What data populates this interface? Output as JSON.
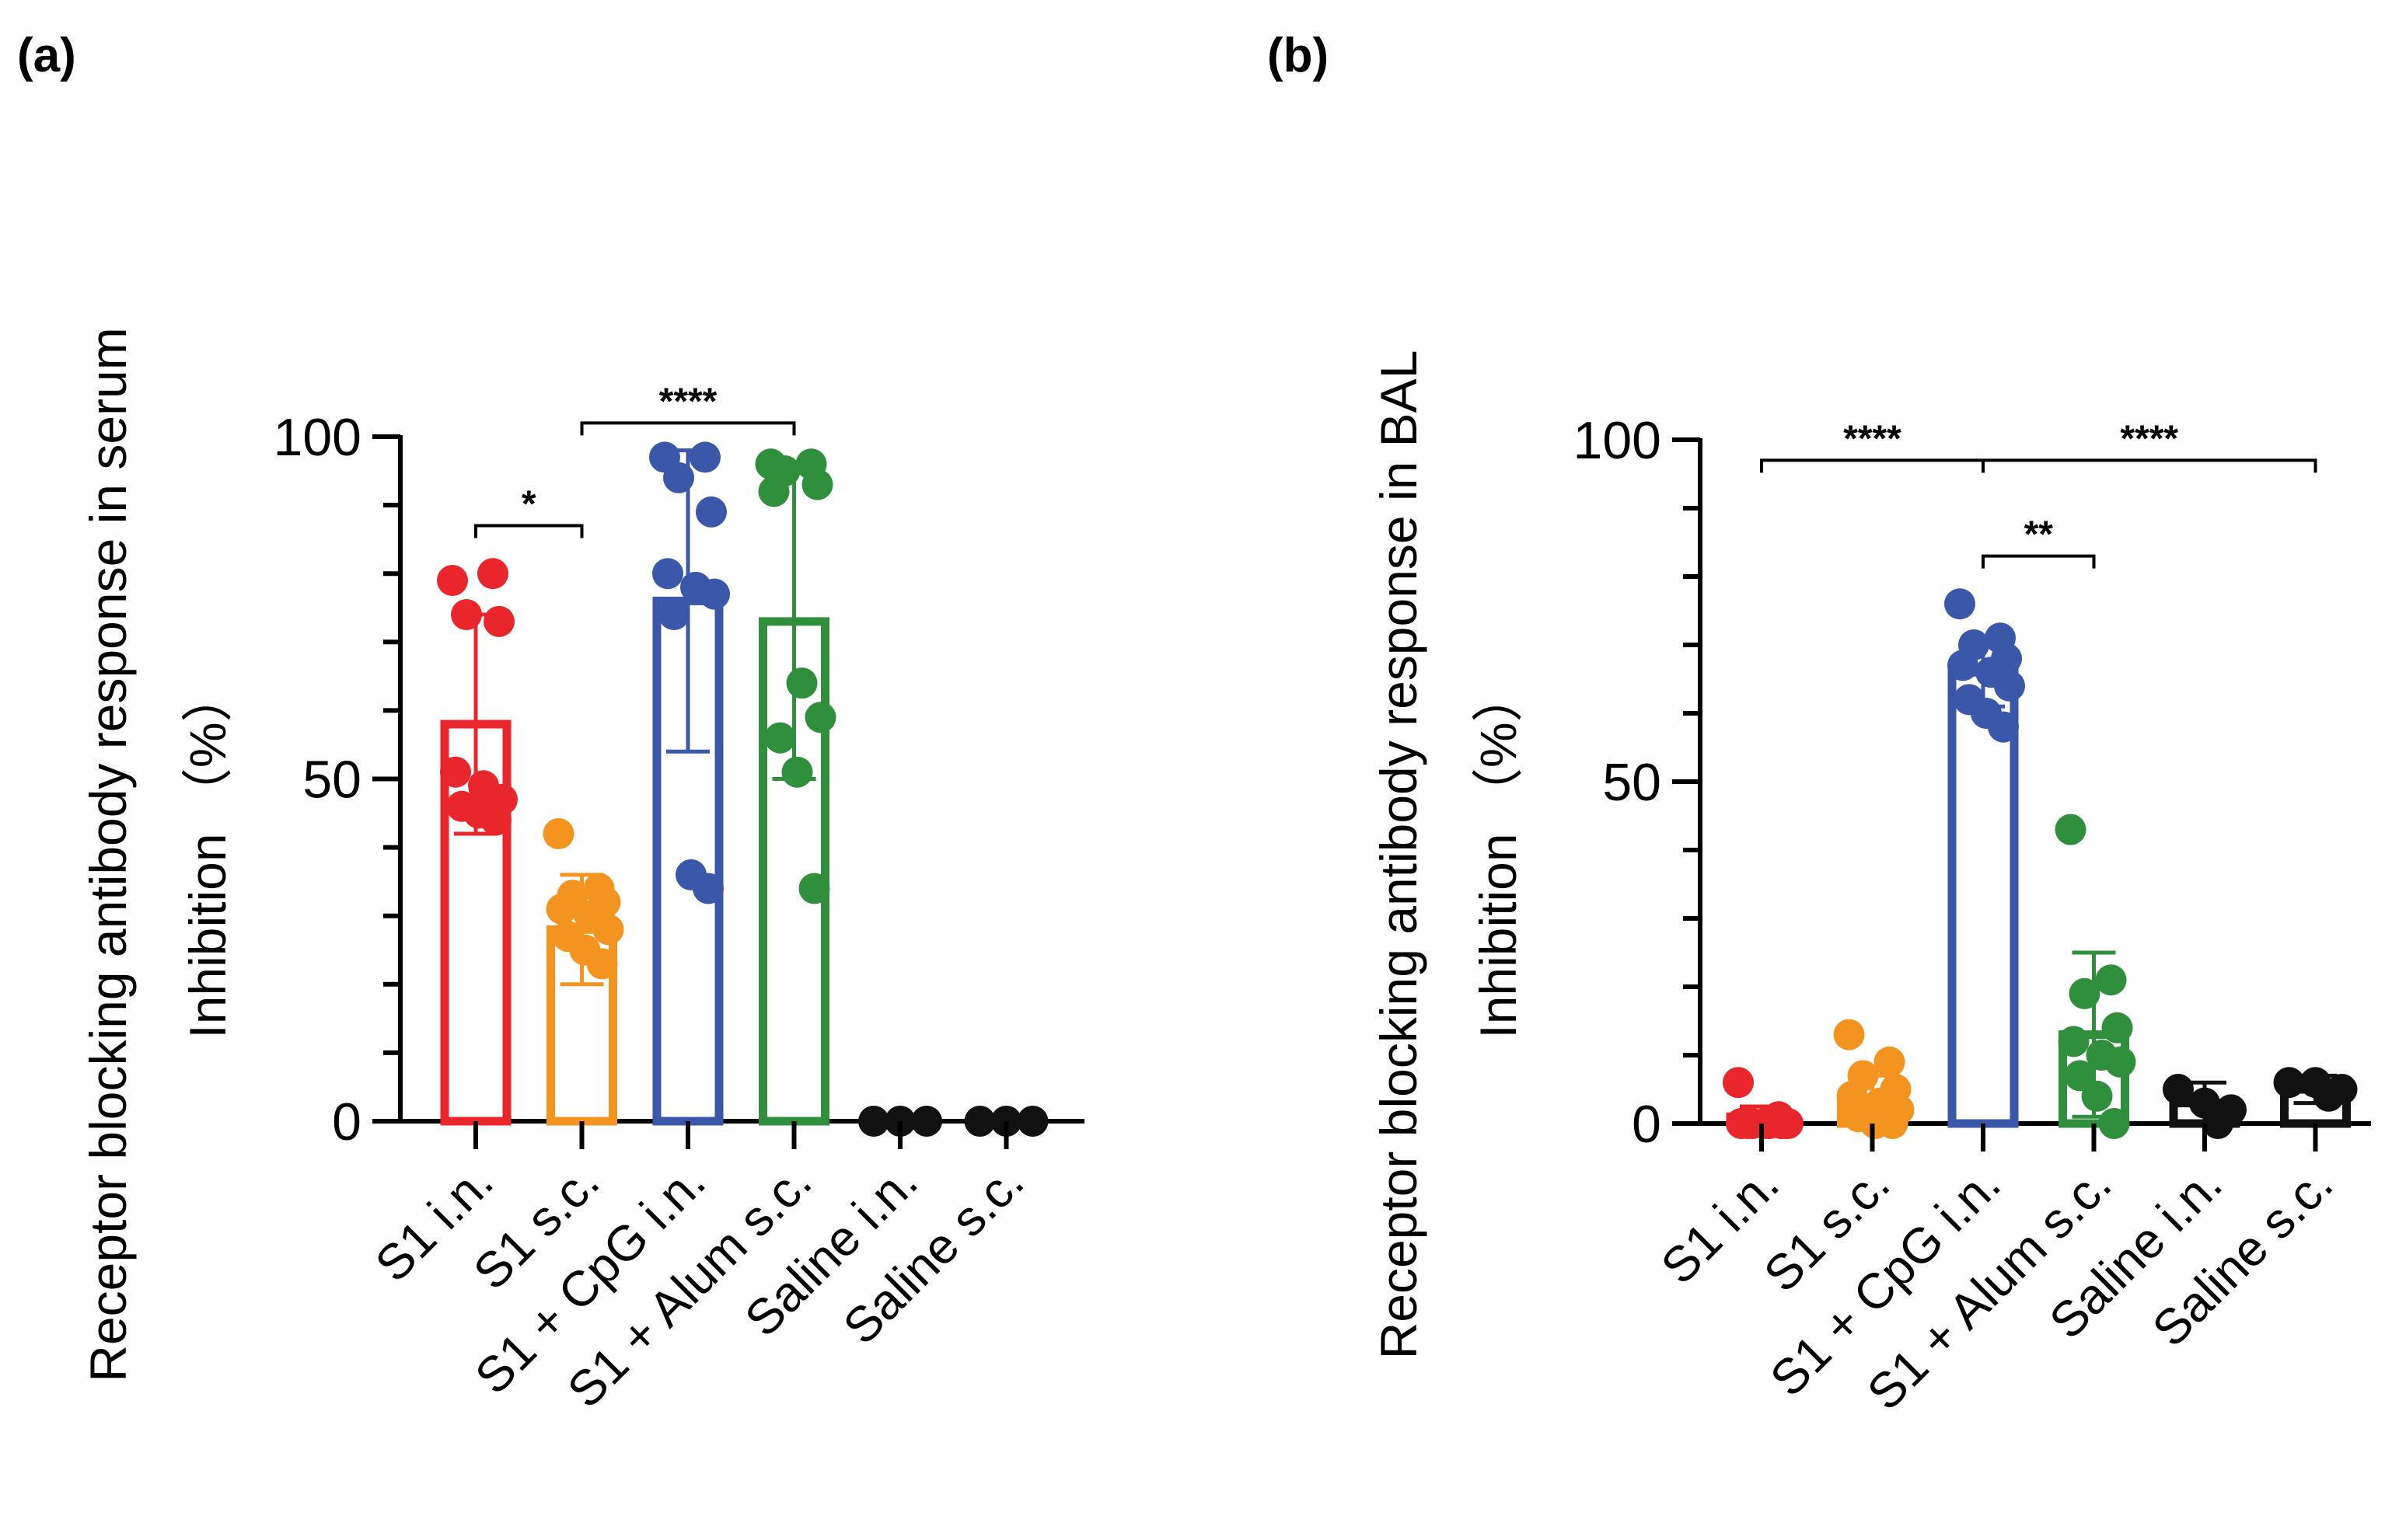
{
  "colors": {
    "red": "#e8262b",
    "orange": "#f39420",
    "blue": "#3a57aa",
    "green": "#2f8f3c",
    "black": "#111111"
  },
  "chart_data": [
    {
      "panel_label": "(a)",
      "type": "bar",
      "ylabel_line1": "Receptor blocking antibody response in serum",
      "ylabel_line2": "Inhibition （%）",
      "ylim": [
        0,
        100
      ],
      "yticks": [
        "0",
        "50",
        "100"
      ],
      "categories": [
        "S1 i.n.",
        "S1 s.c.",
        "S1 + CpG i.n.",
        "S1 + Alum s.c.",
        "Saline i.n.",
        "Saline s.c."
      ],
      "bar_colors": [
        "red",
        "orange",
        "blue",
        "green",
        "black",
        "black"
      ],
      "values": [
        58,
        28,
        76,
        73,
        0,
        0
      ],
      "sd": [
        16,
        8,
        22,
        23,
        0,
        0
      ],
      "points": [
        [
          79,
          80,
          74,
          73,
          51,
          49,
          47,
          46,
          45,
          44
        ],
        [
          42,
          34,
          33,
          32,
          31,
          30,
          28,
          27,
          25,
          23
        ],
        [
          97,
          97,
          94,
          89,
          80,
          78,
          77,
          74,
          36,
          34
        ],
        [
          96,
          96,
          95,
          93,
          92,
          64,
          59,
          56,
          51,
          34
        ],
        [
          0,
          0,
          0
        ],
        [
          0,
          0,
          0
        ]
      ],
      "significance": [
        {
          "from": 0,
          "to": 1,
          "y": 87,
          "label": "*"
        },
        {
          "from": 1,
          "to": 3,
          "y": 102,
          "label": "****"
        }
      ]
    },
    {
      "panel_label": "(b)",
      "type": "bar",
      "ylabel_line1": "Receptor blocking antibody response in BAL",
      "ylabel_line2": "Inhibition （%）",
      "ylim": [
        0,
        100
      ],
      "yticks": [
        "0",
        "50",
        "100"
      ],
      "categories": [
        "S1 i.n.",
        "S1 s.c.",
        "S1 + CpG i.n.",
        "S1 + Alum s.c.",
        "Saline i.n.",
        "Saline s.c."
      ],
      "bar_colors": [
        "red",
        "orange",
        "blue",
        "green",
        "black",
        "black"
      ],
      "values": [
        1,
        3,
        66,
        13,
        3,
        5
      ],
      "sd": [
        1.5,
        4,
        5,
        12,
        3,
        2
      ],
      "points": [
        [
          6,
          1,
          0,
          0,
          0,
          0,
          0,
          0,
          0,
          0
        ],
        [
          13,
          9,
          7,
          5,
          4,
          3,
          2,
          1,
          0,
          0
        ],
        [
          76,
          71,
          70,
          68,
          67,
          66,
          64,
          62,
          60,
          58
        ],
        [
          43,
          21,
          19,
          14,
          12,
          10,
          9,
          7,
          4,
          0
        ],
        [
          5,
          3,
          2,
          0
        ],
        [
          6,
          6,
          5,
          4
        ]
      ],
      "significance": [
        {
          "from": 0,
          "to": 2,
          "y": 97,
          "label": "****"
        },
        {
          "from": 2,
          "to": 5,
          "y": 97,
          "label": "****"
        },
        {
          "from": 2,
          "to": 3,
          "y": 83,
          "label": "**"
        }
      ]
    }
  ]
}
